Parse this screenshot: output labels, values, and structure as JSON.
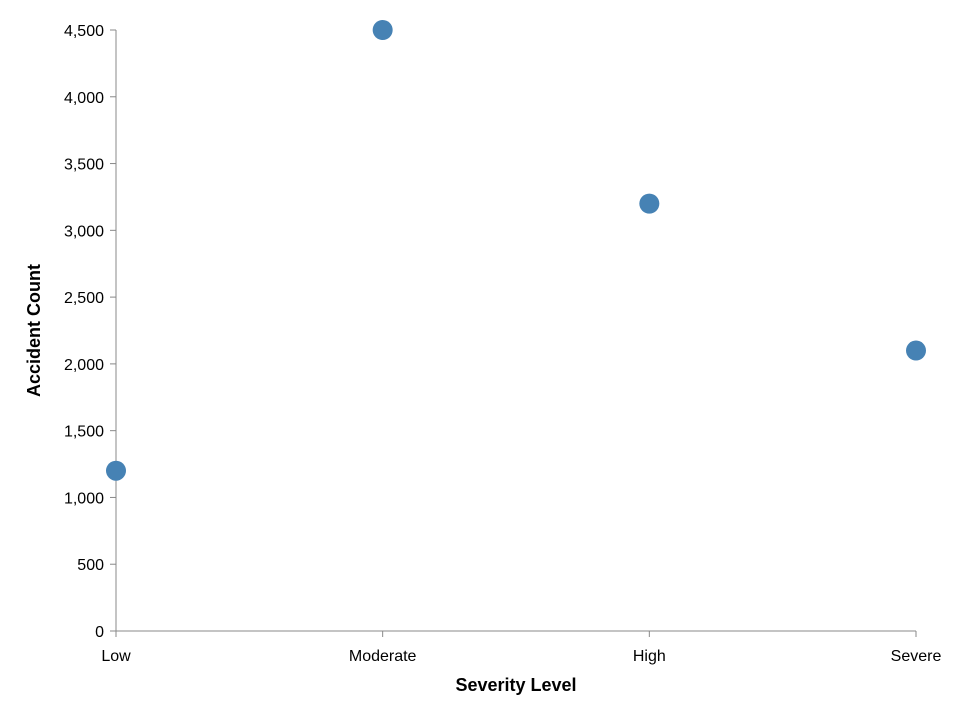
{
  "chart_data": {
    "type": "scatter",
    "title": "",
    "xlabel": "Severity Level",
    "ylabel": "Accident Count",
    "categories": [
      "Low",
      "Moderate",
      "High",
      "Severe"
    ],
    "values": [
      1200,
      4500,
      3200,
      2100
    ],
    "ylim": [
      0,
      4500
    ],
    "yticks": [
      0,
      500,
      1000,
      1500,
      2000,
      2500,
      3000,
      3500,
      4000,
      4500
    ],
    "grid": false,
    "point_color": "#4682b4"
  }
}
